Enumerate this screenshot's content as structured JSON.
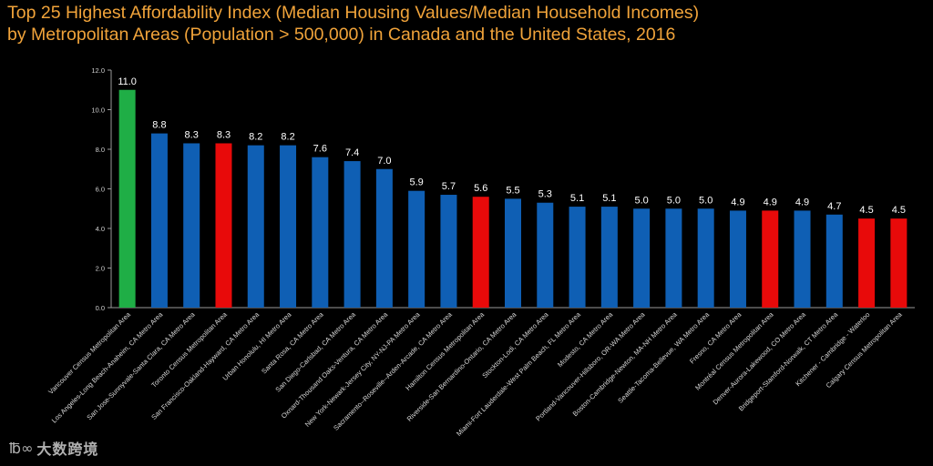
{
  "title": {
    "line1": "Top 25 Highest Affordability Index (Median Housing Values/Median Household Incomes)",
    "line2": "by Metropolitan Areas (Population > 500,000) in Canada and the United States, 2016"
  },
  "colors": {
    "highlight_us": "#0f5fb4",
    "highlight_canada": "#e80a0a",
    "highlight_top": "#1fae46",
    "axis": "#9a9a9a",
    "title": "#f0a33a"
  },
  "chart_data": {
    "type": "bar",
    "title": "Top 25 Highest Affordability Index (Median Housing Values/Median Household Incomes) by Metropolitan Areas (Population > 500,000) in Canada and the United States, 2016",
    "xlabel": "",
    "ylabel": "",
    "ylim": [
      0,
      12
    ],
    "yticks": [
      "0.0",
      "2.0",
      "4.0",
      "6.0",
      "8.0",
      "10.0",
      "12.0"
    ],
    "grid": false,
    "categories": [
      "Vancouver Census Metropolitan Area",
      "Los Angeles-Long Beach-Anaheim, CA Metro Area",
      "San Jose-Sunnyvale-Santa Clara, CA Metro Area",
      "Toronto Census Metropolitan Area",
      "San Francisco-Oakland-Hayward, CA Metro Area",
      "Urban Honolulu, HI Metro Area",
      "Santa Rosa, CA Metro Area",
      "San Diego-Carlsbad, CA Metro Area",
      "Oxnard-Thousand Oaks-Ventura, CA Metro Area",
      "New York-Newark-Jersey City, NY-NJ-PA Metro Area",
      "Sacramento--Roseville--Arden-Arcade, CA Metro Area",
      "Hamilton Census Metropolitan Area",
      "Riverside-San Bernardino-Ontario, CA Metro Area",
      "Stockton-Lodi, CA Metro Area",
      "Miami-Fort Lauderdale-West Palm Beach, FL Metro Area",
      "Modesto, CA Metro Area",
      "Portland-Vancouver-Hillsboro, OR-WA Metro Area",
      "Boston-Cambridge-Newton, MA-NH Metro Area",
      "Seattle-Tacoma-Bellevue, WA Metro Area",
      "Fresno, CA Metro Area",
      "Montréal Census Metropolitan Area",
      "Denver-Aurora-Lakewood, CO Metro Area",
      "Bridgeport-Stamford-Norwalk, CT Metro Area",
      "Kitchener - Cambridge - Waterloo",
      "Calgary Census Metropolitan Area"
    ],
    "values": [
      11.0,
      8.8,
      8.3,
      8.3,
      8.2,
      8.2,
      7.6,
      7.4,
      7.0,
      5.9,
      5.7,
      5.6,
      5.5,
      5.3,
      5.1,
      5.1,
      5.0,
      5.0,
      5.0,
      4.9,
      4.9,
      4.9,
      4.7,
      4.5,
      4.5
    ],
    "value_labels": [
      "11.0",
      "8.8",
      "8.3",
      "8.3",
      "8.2",
      "8.2",
      "7.6",
      "7.4",
      "7.0",
      "5.9",
      "5.7",
      "5.6",
      "5.5",
      "5.3",
      "5.1",
      "5.1",
      "5.0",
      "5.0",
      "5.0",
      "4.9",
      "4.9",
      "4.9",
      "4.7",
      "4.5",
      "4.5"
    ],
    "bar_colors": [
      "#1fae46",
      "#0f5fb4",
      "#0f5fb4",
      "#e80a0a",
      "#0f5fb4",
      "#0f5fb4",
      "#0f5fb4",
      "#0f5fb4",
      "#0f5fb4",
      "#0f5fb4",
      "#0f5fb4",
      "#e80a0a",
      "#0f5fb4",
      "#0f5fb4",
      "#0f5fb4",
      "#0f5fb4",
      "#0f5fb4",
      "#0f5fb4",
      "#0f5fb4",
      "#0f5fb4",
      "#e80a0a",
      "#0f5fb4",
      "#0f5fb4",
      "#e80a0a",
      "#e80a0a"
    ]
  },
  "watermark": {
    "mark": "℔∞",
    "text": "大数跨境"
  }
}
